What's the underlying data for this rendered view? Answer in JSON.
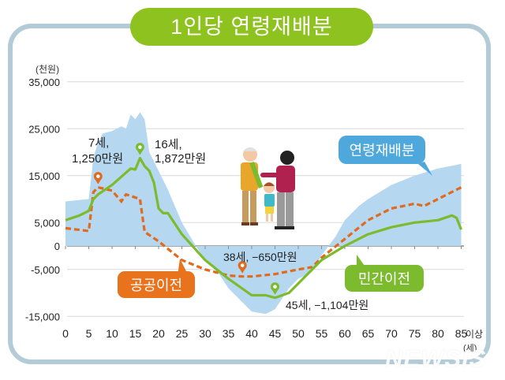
{
  "header": {
    "title": "1인당 연령재배분"
  },
  "watermark": "NEWSIS",
  "labels": {
    "unit": "(천원)",
    "x_suffix": "이상",
    "x_unit": "(세)",
    "legend_total": "연령재배분",
    "legend_public": "공공이전",
    "legend_private": "민간이전",
    "ann_7_line1": "7세,",
    "ann_7_line2": "1,250만원",
    "ann_16_line1": "16세,",
    "ann_16_line2": "1,872만원",
    "ann_38": "38세, −650만원",
    "ann_45": "45세, −1,104만원"
  },
  "colors": {
    "frame": "#b3cad7",
    "title_bg": "#8dc21f",
    "area": "#b5d7f0",
    "public": "#e06a1e",
    "private": "#7dbb2e",
    "legend_total_bg": "#4ea8dc",
    "legend_public_bg": "#e8731c",
    "legend_private_bg": "#7dbb2e",
    "grid": "#d9d9d9"
  },
  "chart_data": {
    "type": "area",
    "title": "1인당 연령재배분",
    "xlabel": "(세)",
    "ylabel": "(천원)",
    "ylim": [
      -15000,
      35000
    ],
    "yticks": [
      35000,
      25000,
      15000,
      5000,
      0,
      -5000,
      -15000
    ],
    "ytick_labels": [
      "35,000",
      "25,000",
      "15,000",
      "5,000",
      "0",
      "-5,000",
      "-15,000"
    ],
    "xticks": [
      0,
      5,
      10,
      15,
      20,
      25,
      30,
      35,
      40,
      45,
      50,
      55,
      60,
      65,
      70,
      75,
      80,
      85
    ],
    "xtick_labels": [
      "0",
      "5",
      "10",
      "15",
      "20",
      "25",
      "30",
      "35",
      "40",
      "45",
      "50",
      "55",
      "60",
      "65",
      "70",
      "75",
      "80",
      "85이상"
    ],
    "grid": true,
    "series": [
      {
        "name": "연령재배분",
        "style": "area",
        "points": [
          [
            0,
            9500
          ],
          [
            5,
            10000
          ],
          [
            6,
            19000
          ],
          [
            7,
            22000
          ],
          [
            8,
            24000
          ],
          [
            10,
            24500
          ],
          [
            12,
            25500
          ],
          [
            13,
            25000
          ],
          [
            14,
            28000
          ],
          [
            15,
            27000
          ],
          [
            16,
            28500
          ],
          [
            17,
            27000
          ],
          [
            18,
            20000
          ],
          [
            20,
            16000
          ],
          [
            22,
            12000
          ],
          [
            25,
            5000
          ],
          [
            28,
            0
          ],
          [
            30,
            -3000
          ],
          [
            33,
            -6000
          ],
          [
            35,
            -9000
          ],
          [
            38,
            -12000
          ],
          [
            40,
            -14000
          ],
          [
            43,
            -14500
          ],
          [
            45,
            -13500
          ],
          [
            48,
            -9000
          ],
          [
            50,
            -7000
          ],
          [
            53,
            -5500
          ],
          [
            55,
            -2000
          ],
          [
            58,
            2000
          ],
          [
            60,
            5500
          ],
          [
            63,
            8500
          ],
          [
            65,
            10000
          ],
          [
            70,
            13000
          ],
          [
            75,
            15000
          ],
          [
            80,
            16500
          ],
          [
            85,
            17500
          ]
        ]
      },
      {
        "name": "공공이전",
        "style": "dashed",
        "points": [
          [
            0,
            3800
          ],
          [
            5,
            3200
          ],
          [
            6,
            11500
          ],
          [
            7,
            12500
          ],
          [
            10,
            11800
          ],
          [
            12,
            9500
          ],
          [
            13,
            11000
          ],
          [
            16,
            10000
          ],
          [
            17,
            3000
          ],
          [
            20,
            1000
          ],
          [
            25,
            -3000
          ],
          [
            30,
            -5000
          ],
          [
            35,
            -6300
          ],
          [
            38,
            -6500
          ],
          [
            40,
            -6500
          ],
          [
            45,
            -6000
          ],
          [
            50,
            -5000
          ],
          [
            53,
            -4500
          ],
          [
            55,
            -2500
          ],
          [
            60,
            1500
          ],
          [
            65,
            5500
          ],
          [
            70,
            8000
          ],
          [
            75,
            9000
          ],
          [
            77,
            8500
          ],
          [
            80,
            10000
          ],
          [
            85,
            12500
          ]
        ]
      },
      {
        "name": "민간이전",
        "style": "solid",
        "points": [
          [
            0,
            5500
          ],
          [
            3,
            6500
          ],
          [
            5,
            7500
          ],
          [
            6,
            10000
          ],
          [
            7,
            11000
          ],
          [
            10,
            13000
          ],
          [
            14,
            16500
          ],
          [
            15,
            16300
          ],
          [
            16,
            18720
          ],
          [
            17,
            17000
          ],
          [
            18,
            16000
          ],
          [
            19,
            13500
          ],
          [
            20,
            8000
          ],
          [
            21,
            7000
          ],
          [
            22,
            7000
          ],
          [
            25,
            2500
          ],
          [
            30,
            -3000
          ],
          [
            35,
            -7000
          ],
          [
            40,
            -10500
          ],
          [
            43,
            -10500
          ],
          [
            45,
            -11040
          ],
          [
            48,
            -10000
          ],
          [
            50,
            -8000
          ],
          [
            55,
            -3000
          ],
          [
            60,
            0
          ],
          [
            63,
            1500
          ],
          [
            65,
            2500
          ],
          [
            70,
            4000
          ],
          [
            75,
            5000
          ],
          [
            80,
            5500
          ],
          [
            83,
            6500
          ],
          [
            84,
            6000
          ],
          [
            85,
            3500
          ]
        ]
      }
    ],
    "annotations": [
      {
        "series": "공공이전",
        "x": 7,
        "y": 12500,
        "text": "7세, 1,250만원"
      },
      {
        "series": "민간이전",
        "x": 16,
        "y": 18720,
        "text": "16세, 1,872만원"
      },
      {
        "series": "공공이전",
        "x": 38,
        "y": -6500,
        "text": "38세, −650만원"
      },
      {
        "series": "민간이전",
        "x": 45,
        "y": -11040,
        "text": "45세, −1,104만원"
      }
    ],
    "legend_position": "inline callouts"
  }
}
